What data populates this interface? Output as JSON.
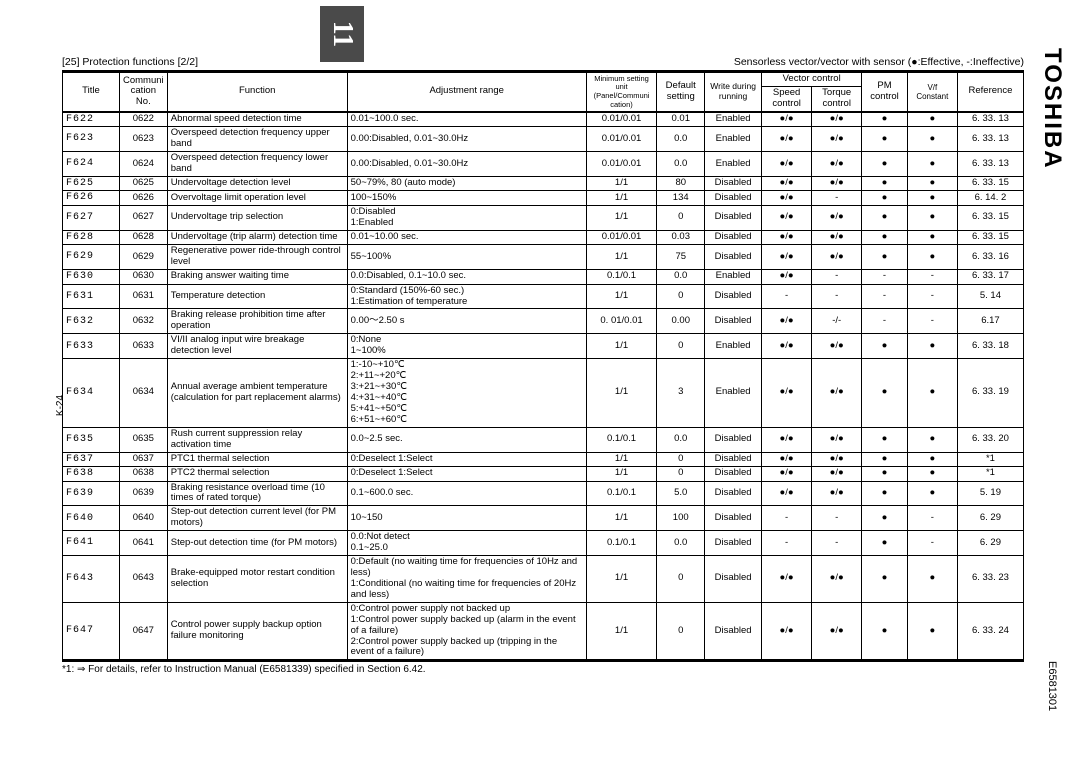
{
  "brand": "TOSHIBA",
  "doc_id": "E6581301",
  "tab_number": "11",
  "side_page": "K-24",
  "section_title": "[25] Protection functions [2/2]",
  "legend": "Sensorless vector/vector with sensor (●:Effective, -:Ineffective)",
  "footnote": "*1: ⇒ For details, refer to Instruction Manual (E6581339) specified in Section 6.42.",
  "headers": {
    "title": "Title",
    "comm": "Communi cation No.",
    "func": "Function",
    "adj": "Adjustment range",
    "min_unit": "Minimum setting unit (Panel/Communi cation)",
    "default": "Default setting",
    "write": "Write during running",
    "vector": "Vector control",
    "speed": "Speed control",
    "torque": "Torque control",
    "pm": "PM control",
    "vf": "V/f Constant",
    "ref": "Reference"
  },
  "rows": [
    {
      "title": "F622",
      "comm": "0622",
      "func": "Abnormal speed detection time",
      "adj": "0.01~100.0 sec.",
      "unit": "0.01/0.01",
      "def": "0.01",
      "write": "Enabled",
      "speed": "●/●",
      "torque": "●/●",
      "pm": "●",
      "vf": "●",
      "ref": "6. 33. 13"
    },
    {
      "title": "F623",
      "comm": "0623",
      "func": "Overspeed detection frequency upper band",
      "adj": "0.00:Disabled, 0.01~30.0Hz",
      "unit": "0.01/0.01",
      "def": "0.0",
      "write": "Enabled",
      "speed": "●/●",
      "torque": "●/●",
      "pm": "●",
      "vf": "●",
      "ref": "6. 33. 13"
    },
    {
      "title": "F624",
      "comm": "0624",
      "func": "Overspeed detection frequency lower band",
      "adj": "0.00:Disabled, 0.01~30.0Hz",
      "unit": "0.01/0.01",
      "def": "0.0",
      "write": "Enabled",
      "speed": "●/●",
      "torque": "●/●",
      "pm": "●",
      "vf": "●",
      "ref": "6. 33. 13"
    },
    {
      "title": "F625",
      "comm": "0625",
      "func": "Undervoltage detection level",
      "adj": "50~79%, 80 (auto mode)",
      "unit": "1/1",
      "def": "80",
      "write": "Disabled",
      "speed": "●/●",
      "torque": "●/●",
      "pm": "●",
      "vf": "●",
      "ref": "6. 33. 15"
    },
    {
      "title": "F626",
      "comm": "0626",
      "func": "Overvoltage limit operation level",
      "adj": "100~150%",
      "unit": "1/1",
      "def": "134",
      "write": "Disabled",
      "speed": "●/●",
      "torque": "-",
      "pm": "●",
      "vf": "●",
      "ref": "6. 14. 2"
    },
    {
      "title": "F627",
      "comm": "0627",
      "func": "Undervoltage trip selection",
      "adj": "0:Disabled\n1:Enabled",
      "unit": "1/1",
      "def": "0",
      "write": "Disabled",
      "speed": "●/●",
      "torque": "●/●",
      "pm": "●",
      "vf": "●",
      "ref": "6. 33. 15"
    },
    {
      "title": "F628",
      "comm": "0628",
      "func": "Undervoltage (trip alarm) detection time",
      "adj": "0.01~10.00 sec.",
      "unit": "0.01/0.01",
      "def": "0.03",
      "write": "Disabled",
      "speed": "●/●",
      "torque": "●/●",
      "pm": "●",
      "vf": "●",
      "ref": "6. 33. 15"
    },
    {
      "title": "F629",
      "comm": "0629",
      "func": "Regenerative power ride-through control level",
      "adj": "55~100%",
      "unit": "1/1",
      "def": "75",
      "write": "Disabled",
      "speed": "●/●",
      "torque": "●/●",
      "pm": "●",
      "vf": "●",
      "ref": "6. 33. 16"
    },
    {
      "title": "F630",
      "comm": "0630",
      "func": "Braking answer waiting time",
      "adj": "0.0:Disabled, 0.1~10.0 sec.",
      "unit": "0.1/0.1",
      "def": "0.0",
      "write": "Enabled",
      "speed": "●/●",
      "torque": "-",
      "pm": "-",
      "vf": "-",
      "ref": "6. 33. 17"
    },
    {
      "title": "F631",
      "comm": "0631",
      "func": "Temperature detection",
      "adj": "0:Standard (150%-60 sec.)\n1:Estimation of temperature",
      "unit": "1/1",
      "def": "0",
      "write": "Disabled",
      "speed": "-",
      "torque": "-",
      "pm": "-",
      "vf": "-",
      "ref": "5. 14"
    },
    {
      "title": "F632",
      "comm": "0632",
      "func": "Braking release prohibition time after operation",
      "adj": "0.00～2.50 s",
      "unit": "0. 01/0.01",
      "def": "0.00",
      "write": "Disabled",
      "speed": "●/●",
      "torque": "-/-",
      "pm": "-",
      "vf": "-",
      "ref": "6.17"
    },
    {
      "title": "F633",
      "comm": "0633",
      "func": "VI/II analog input wire breakage detection level",
      "adj": "0:None\n1~100%",
      "unit": "1/1",
      "def": "0",
      "write": "Enabled",
      "speed": "●/●",
      "torque": "●/●",
      "pm": "●",
      "vf": "●",
      "ref": "6. 33. 18"
    },
    {
      "title": "F634",
      "comm": "0634",
      "func": "Annual average ambient temperature (calculation for part replacement alarms)",
      "adj": "1:-10~+10℃\n2:+11~+20℃\n3:+21~+30℃\n4:+31~+40℃\n5:+41~+50℃\n6:+51~+60℃",
      "unit": "1/1",
      "def": "3",
      "write": "Enabled",
      "speed": "●/●",
      "torque": "●/●",
      "pm": "●",
      "vf": "●",
      "ref": "6. 33. 19"
    },
    {
      "title": "F635",
      "comm": "0635",
      "func": "Rush current suppression relay activation time",
      "adj": "0.0~2.5 sec.",
      "unit": "0.1/0.1",
      "def": "0.0",
      "write": "Disabled",
      "speed": "●/●",
      "torque": "●/●",
      "pm": "●",
      "vf": "●",
      "ref": "6. 33. 20"
    },
    {
      "title": "F637",
      "comm": "0637",
      "func": "PTC1 thermal selection",
      "adj": "0:Deselect      1:Select",
      "unit": "1/1",
      "def": "0",
      "write": "Disabled",
      "speed": "●/●",
      "torque": "●/●",
      "pm": "●",
      "vf": "●",
      "ref": "*1"
    },
    {
      "title": "F638",
      "comm": "0638",
      "func": "PTC2 thermal selection",
      "adj": "0:Deselect      1:Select",
      "unit": "1/1",
      "def": "0",
      "write": "Disabled",
      "speed": "●/●",
      "torque": "●/●",
      "pm": "●",
      "vf": "●",
      "ref": "*1"
    },
    {
      "title": "F639",
      "comm": "0639",
      "func": "Braking resistance overload time (10 times of rated torque)",
      "adj": "0.1~600.0 sec.",
      "unit": "0.1/0.1",
      "def": "5.0",
      "write": "Disabled",
      "speed": "●/●",
      "torque": "●/●",
      "pm": "●",
      "vf": "●",
      "ref": "5. 19"
    },
    {
      "title": "F640",
      "comm": "0640",
      "func": "Step-out detection current level (for PM motors)",
      "adj": "10~150",
      "unit": "1/1",
      "def": "100",
      "write": "Disabled",
      "speed": "-",
      "torque": "-",
      "pm": "●",
      "vf": "-",
      "ref": "6. 29"
    },
    {
      "title": "F641",
      "comm": "0641",
      "func": "Step-out detection time (for PM motors)",
      "adj": "0.0:Not detect\n0.1~25.0",
      "unit": "0.1/0.1",
      "def": "0.0",
      "write": "Disabled",
      "speed": "-",
      "torque": "-",
      "pm": "●",
      "vf": "-",
      "ref": "6. 29"
    },
    {
      "title": "F643",
      "comm": "0643",
      "func": "Brake-equipped motor restart condition selection",
      "adj": "0:Default (no waiting time for frequencies of 10Hz and less)\n1:Conditional (no waiting time for frequencies of 20Hz and less)",
      "unit": "1/1",
      "def": "0",
      "write": "Disabled",
      "speed": "●/●",
      "torque": "●/●",
      "pm": "●",
      "vf": "●",
      "ref": "6. 33. 23"
    },
    {
      "title": "F647",
      "comm": "0647",
      "func": "Control power supply backup option failure monitoring",
      "adj": "0:Control power supply not backed up\n1:Control power supply backed up (alarm in the event of a failure)\n2:Control power supply backed up (tripping in the event of a failure)",
      "unit": "1/1",
      "def": "0",
      "write": "Disabled",
      "speed": "●/●",
      "torque": "●/●",
      "pm": "●",
      "vf": "●",
      "ref": "6. 33. 24"
    }
  ],
  "col_widths": [
    "50",
    "42",
    "158",
    "210",
    "62",
    "42",
    "50",
    "44",
    "44",
    "40",
    "44",
    "58"
  ]
}
